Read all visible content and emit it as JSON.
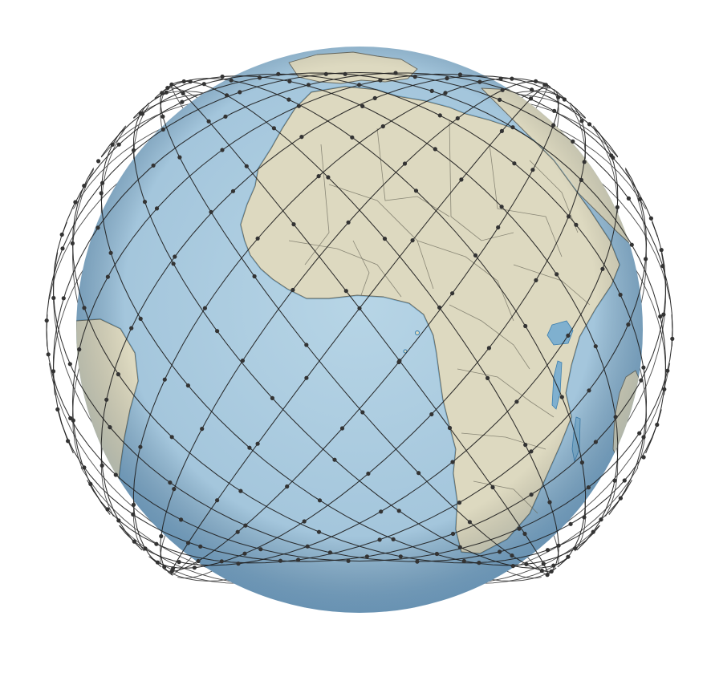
{
  "map": {
    "projection": "orthographic",
    "center": {
      "lon": -6,
      "lat": 8
    },
    "colors": {
      "ocean_center": "#b7d5e6",
      "ocean_edge": "#7eaacb",
      "land": "#ddd9c0",
      "coast": "#2f7eb3",
      "border": "#7a7868",
      "constellation": "#2b2b2b",
      "background": "#ffffff"
    },
    "visible_landmasses": [
      "africa",
      "south-america",
      "iberia",
      "arabia",
      "madagascar",
      "great-lakes",
      "lake-victoria"
    ]
  },
  "constellation": {
    "type": "walker-delta",
    "orbital_planes": 24,
    "satellites_per_plane": 22,
    "inclination_deg": 53,
    "marker_icon": "satellite-dot-icon"
  }
}
